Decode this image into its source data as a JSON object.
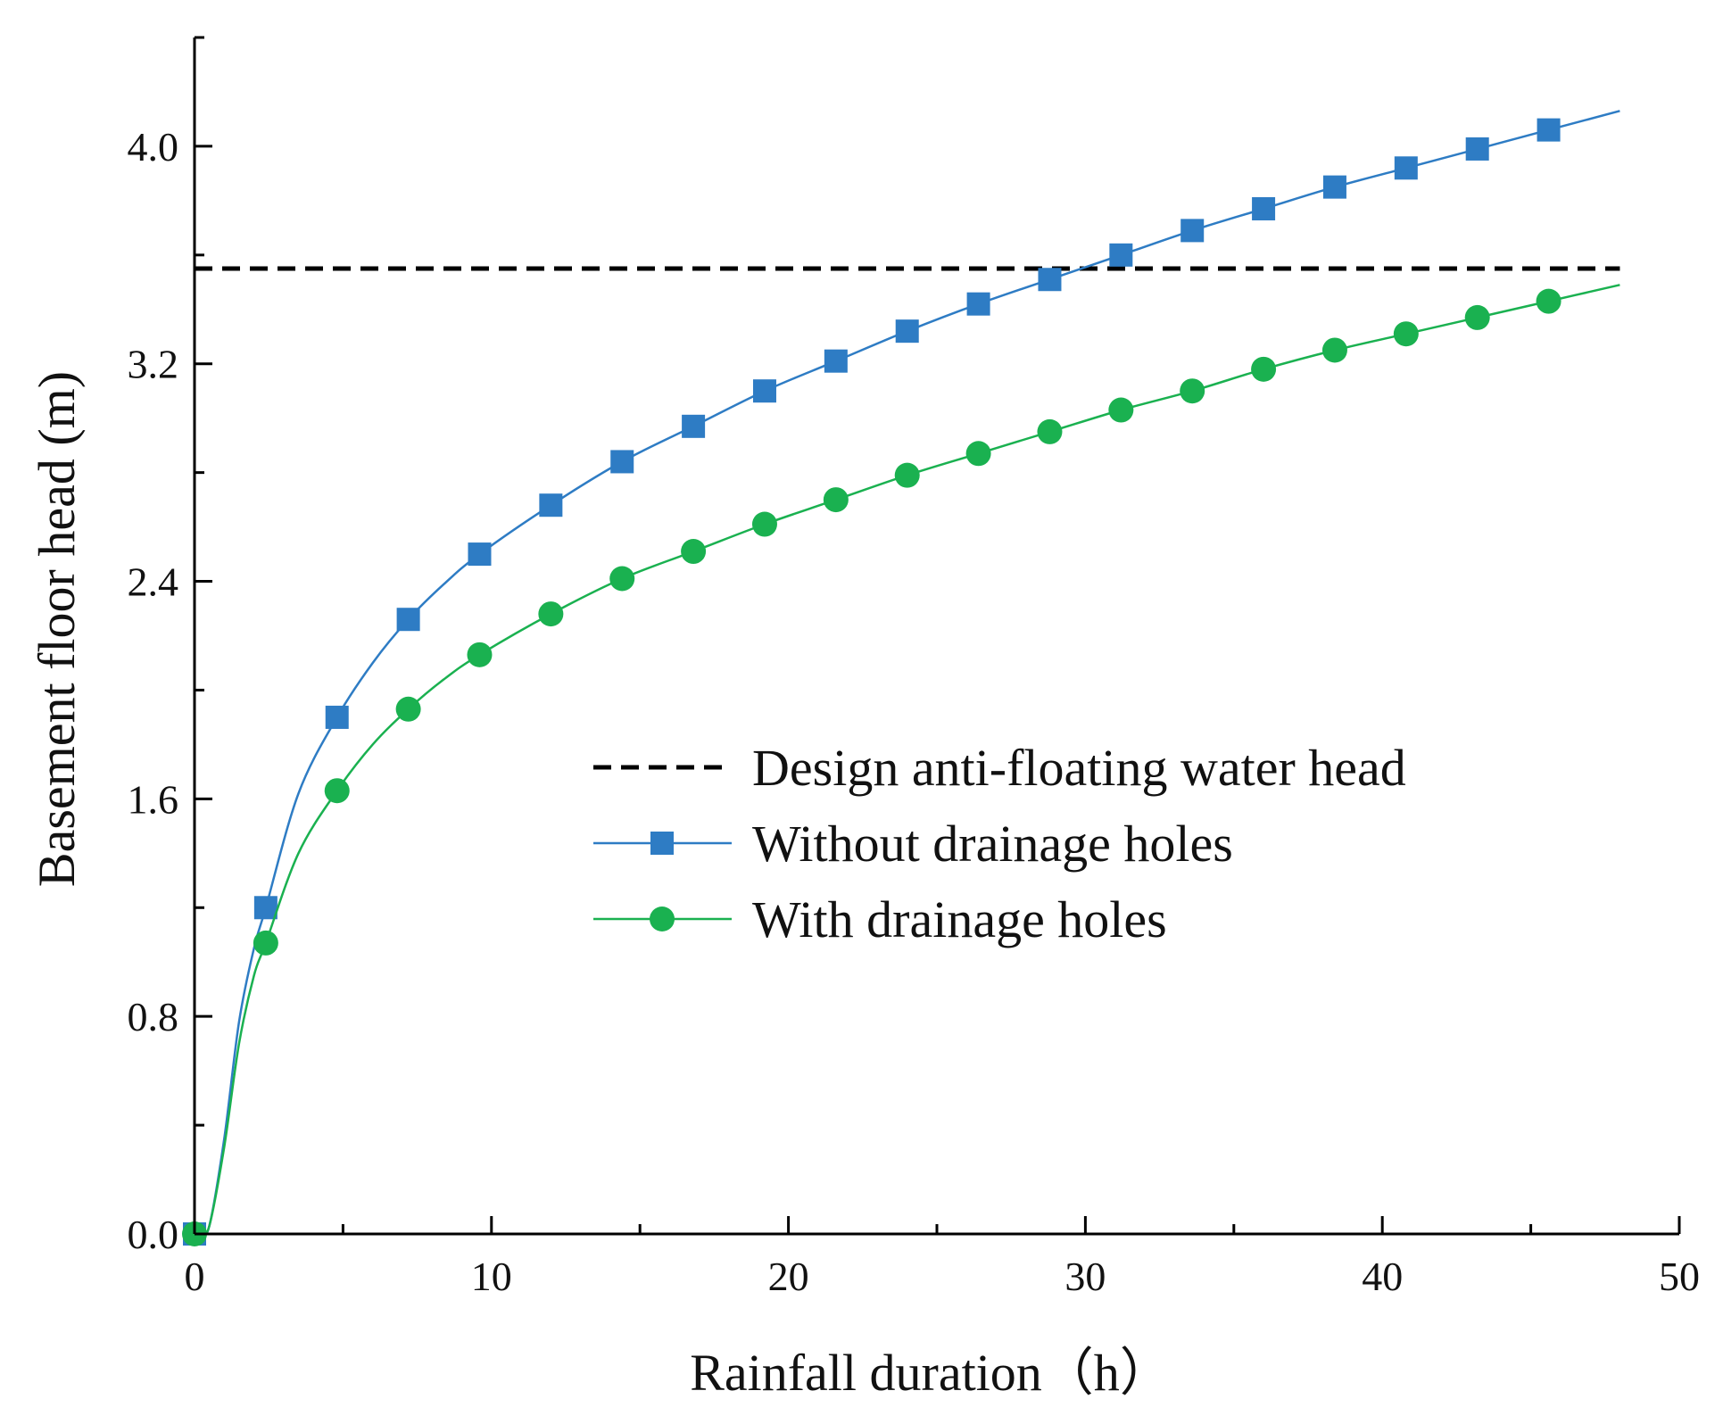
{
  "chart_data": {
    "type": "line",
    "title": "",
    "xlabel": "Rainfall duration（h）",
    "ylabel": "Basement floor head (m)",
    "xlim": [
      0,
      50
    ],
    "ylim": [
      0,
      4.4
    ],
    "xticks": [
      0,
      10,
      20,
      30,
      40,
      50
    ],
    "yticks": [
      0.0,
      0.8,
      1.6,
      2.4,
      3.2,
      4.0
    ],
    "xtick_labels": [
      "0",
      "10",
      "20",
      "30",
      "40",
      "50"
    ],
    "ytick_labels": [
      "0.0",
      "0.8",
      "1.6",
      "2.4",
      "3.2",
      "4.0"
    ],
    "grid": false,
    "legend_position": "center-right",
    "reference_line": {
      "name": "Design anti-floating water head",
      "y": 3.55,
      "x_range": [
        0,
        48
      ],
      "color": "#000000",
      "style": "dashed"
    },
    "series": [
      {
        "name": "Without drainage holes",
        "color": "#2e7cc4",
        "marker": "square",
        "curve": {
          "x": [
            0,
            0.2,
            0.5,
            1.0,
            1.5,
            2.0,
            2.4,
            3.5,
            4.8,
            6.0,
            7.2,
            8.4,
            9.6,
            12.0,
            14.4,
            16.8,
            19.2,
            21.6,
            24.0,
            26.4,
            28.8,
            31.2,
            33.6,
            36.0,
            38.4,
            40.8,
            43.2,
            45.6,
            48.0
          ],
          "y": [
            0,
            0,
            0.03,
            0.35,
            0.78,
            1.05,
            1.2,
            1.62,
            1.9,
            2.1,
            2.26,
            2.39,
            2.5,
            2.68,
            2.84,
            2.97,
            3.1,
            3.21,
            3.32,
            3.42,
            3.51,
            3.6,
            3.69,
            3.77,
            3.85,
            3.92,
            3.99,
            4.06,
            4.13
          ]
        },
        "markers": {
          "x": [
            0,
            2.4,
            4.8,
            7.2,
            9.6,
            12.0,
            14.4,
            16.8,
            19.2,
            21.6,
            24.0,
            26.4,
            28.8,
            31.2,
            33.6,
            36.0,
            38.4,
            40.8,
            43.2,
            45.6
          ],
          "y": [
            0,
            1.2,
            1.9,
            2.26,
            2.5,
            2.68,
            2.84,
            2.97,
            3.1,
            3.21,
            3.32,
            3.42,
            3.51,
            3.6,
            3.69,
            3.77,
            3.85,
            3.92,
            3.99,
            4.06
          ]
        }
      },
      {
        "name": "With drainage holes",
        "color": "#1ab150",
        "marker": "circle",
        "curve": {
          "x": [
            0,
            0.2,
            0.5,
            1.0,
            1.5,
            2.0,
            2.4,
            3.5,
            4.8,
            6.0,
            7.2,
            8.4,
            9.6,
            12.0,
            14.4,
            16.8,
            19.2,
            21.6,
            24.0,
            26.4,
            28.8,
            31.2,
            33.6,
            36.0,
            38.4,
            40.8,
            43.2,
            45.6,
            48.0
          ],
          "y": [
            0,
            0,
            0.03,
            0.32,
            0.7,
            0.95,
            1.07,
            1.4,
            1.63,
            1.8,
            1.93,
            2.04,
            2.13,
            2.28,
            2.41,
            2.51,
            2.61,
            2.7,
            2.79,
            2.87,
            2.95,
            3.03,
            3.1,
            3.18,
            3.25,
            3.31,
            3.37,
            3.43,
            3.49
          ]
        },
        "markers": {
          "x": [
            0,
            2.4,
            4.8,
            7.2,
            9.6,
            12.0,
            14.4,
            16.8,
            19.2,
            21.6,
            24.0,
            26.4,
            28.8,
            31.2,
            33.6,
            36.0,
            38.4,
            40.8,
            43.2,
            45.6
          ],
          "y": [
            0,
            1.07,
            1.63,
            1.93,
            2.13,
            2.28,
            2.41,
            2.51,
            2.61,
            2.7,
            2.79,
            2.87,
            2.95,
            3.03,
            3.1,
            3.18,
            3.25,
            3.31,
            3.37,
            3.43
          ]
        }
      }
    ]
  }
}
